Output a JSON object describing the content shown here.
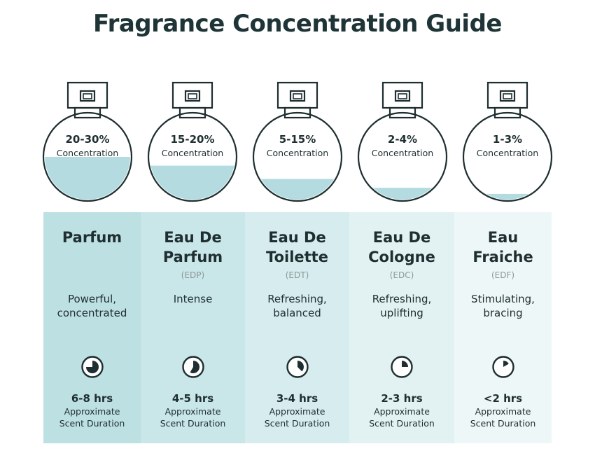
{
  "title": "Fragrance Concentration Guide",
  "colors": {
    "liquid": "#b4dce0",
    "outline": "#1f2e30",
    "column_backgrounds": [
      "#bde0e3",
      "#c9e6e9",
      "#d6ecee",
      "#e2f2f3",
      "#eef7f8"
    ]
  },
  "types": [
    {
      "concentration": "20-30%",
      "concentration_label": "Concentration",
      "fill_level": 0.5,
      "name_lines": [
        "Parfum"
      ],
      "abbr": "",
      "desc_lines": [
        "Powerful,",
        "concentrated"
      ],
      "clock_fraction": 0.75,
      "duration": "6-8 hrs",
      "duration_label_lines": [
        "Approximate",
        "Scent Duration"
      ]
    },
    {
      "concentration": "15-20%",
      "concentration_label": "Concentration",
      "fill_level": 0.4,
      "name_lines": [
        "Eau De",
        "Parfum"
      ],
      "abbr": "(EDP)",
      "desc_lines": [
        "Intense"
      ],
      "clock_fraction": 0.583,
      "duration": "4-5 hrs",
      "duration_label_lines": [
        "Approximate",
        "Scent Duration"
      ]
    },
    {
      "concentration": "5-15%",
      "concentration_label": "Concentration",
      "fill_level": 0.25,
      "name_lines": [
        "Eau De",
        "Toilette"
      ],
      "abbr": "(EDT)",
      "desc_lines": [
        "Refreshing,",
        "balanced"
      ],
      "clock_fraction": 0.375,
      "duration": "3-4 hrs",
      "duration_label_lines": [
        "Approximate",
        "Scent Duration"
      ]
    },
    {
      "concentration": "2-4%",
      "concentration_label": "Concentration",
      "fill_level": 0.15,
      "name_lines": [
        "Eau De",
        "Cologne"
      ],
      "abbr": "(EDC)",
      "desc_lines": [
        "Refreshing,",
        "uplifting"
      ],
      "clock_fraction": 0.25,
      "duration": "2-3 hrs",
      "duration_label_lines": [
        "Approximate",
        "Scent Duration"
      ]
    },
    {
      "concentration": "1-3%",
      "concentration_label": "Concentration",
      "fill_level": 0.08,
      "name_lines": [
        "Eau",
        "Fraiche"
      ],
      "abbr": "(EDF)",
      "desc_lines": [
        "Stimulating,",
        "bracing"
      ],
      "clock_fraction": 0.167,
      "duration": "<2 hrs",
      "duration_label_lines": [
        "Approximate",
        "Scent Duration"
      ]
    }
  ]
}
